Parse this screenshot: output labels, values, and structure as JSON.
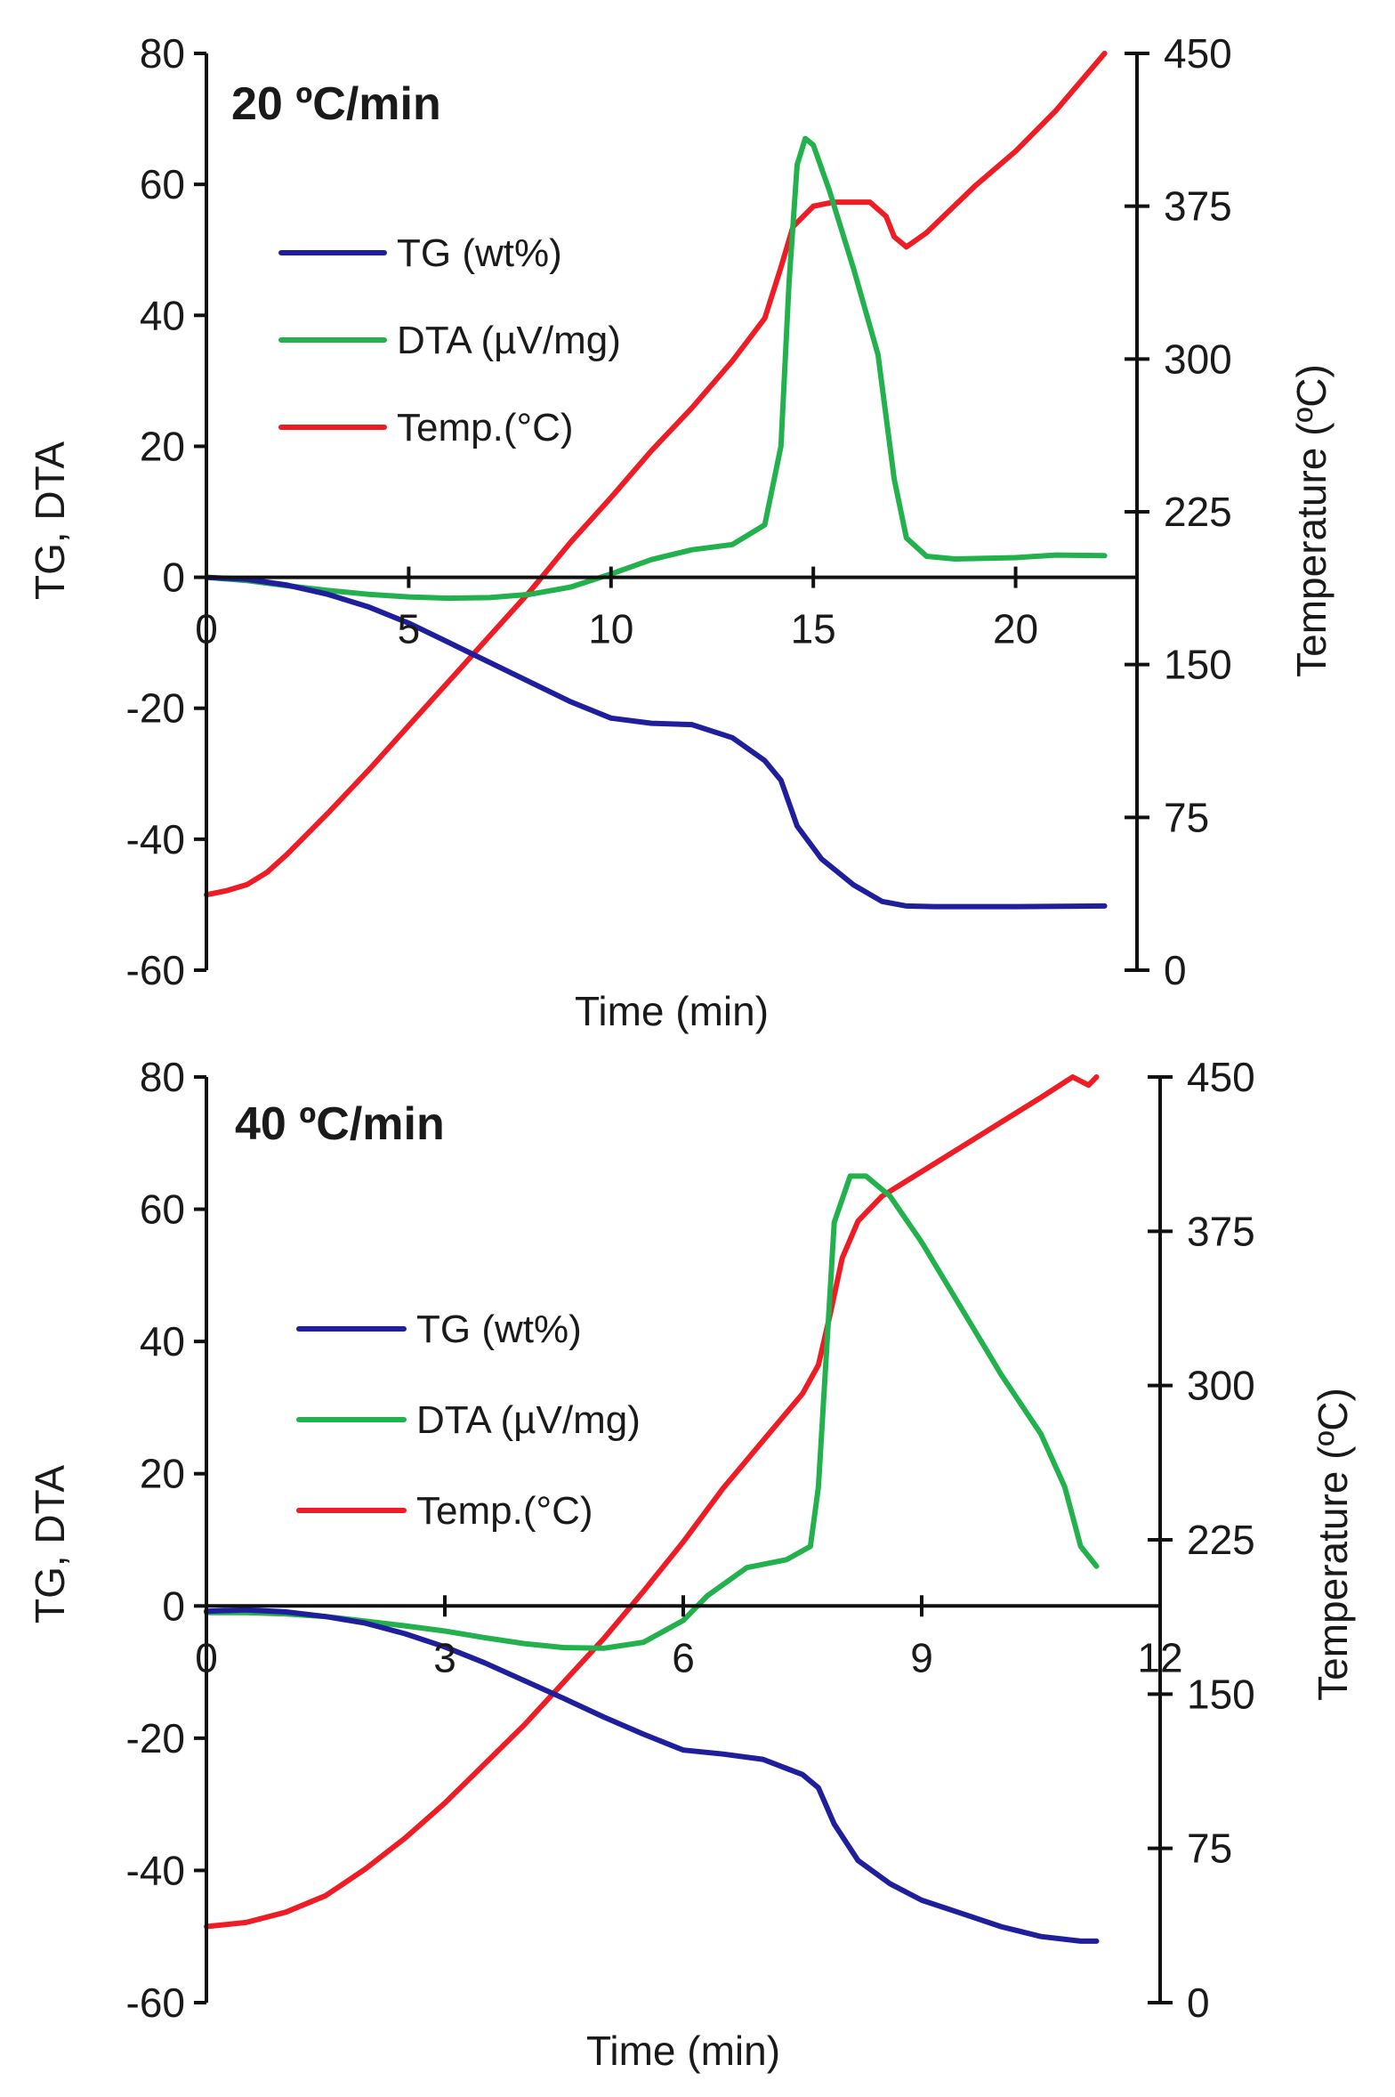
{
  "chart_data": [
    {
      "type": "line",
      "title": "20 ºC/min",
      "xlabel": "Time (min)",
      "ylabel": "TG, DTA",
      "y2label": "Temperature (ºC)",
      "xlim": [
        0,
        23
      ],
      "ylim": [
        -60,
        80
      ],
      "y2lim": [
        0,
        450
      ],
      "x_ticks": [
        0,
        5,
        10,
        15,
        20
      ],
      "x_tick_labels": [
        "0",
        "5",
        "10",
        "15",
        "20"
      ],
      "y_ticks": [
        80,
        60,
        40,
        20,
        0,
        -20,
        -40,
        -60
      ],
      "y_tick_labels": [
        "80",
        "60",
        "40",
        "20",
        "0",
        "-20",
        "-40",
        "-60"
      ],
      "y2_ticks": [
        450,
        375,
        300,
        225,
        150,
        75,
        0
      ],
      "y2_tick_labels": [
        "450",
        "375",
        "300",
        "225",
        "150",
        "75",
        "0"
      ],
      "legend_position": "upper-left",
      "series": [
        {
          "name": "TG (wt%)",
          "axis": "left",
          "color": "#1f1f9e",
          "x": [
            0,
            1,
            2,
            3,
            4,
            5,
            6,
            7,
            8,
            9,
            10,
            11,
            12,
            13,
            13.8,
            14.2,
            14.6,
            15.2,
            16,
            16.7,
            17.3,
            18,
            20,
            22.2
          ],
          "y": [
            0,
            -0.3,
            -1.2,
            -2.6,
            -4.5,
            -7,
            -10,
            -13,
            -16,
            -19,
            -21.5,
            -22.3,
            -22.5,
            -24.5,
            -28,
            -31,
            -38,
            -43,
            -47,
            -49.5,
            -50.2,
            -50.3,
            -50.3,
            -50.2
          ]
        },
        {
          "name": "DTA (µV/mg)",
          "axis": "left",
          "color": "#22b14c",
          "x": [
            0,
            1,
            2,
            3,
            4,
            5,
            6,
            7,
            8,
            9,
            10,
            11,
            12,
            13,
            13.8,
            14.2,
            14.4,
            14.6,
            14.8,
            15.0,
            15.4,
            16.0,
            16.6,
            17.0,
            17.3,
            17.8,
            18.5,
            20,
            21,
            22.2
          ],
          "y": [
            0,
            -0.5,
            -1.3,
            -2.0,
            -2.6,
            -3.0,
            -3.2,
            -3.1,
            -2.6,
            -1.5,
            0.5,
            2.7,
            4.2,
            5,
            8,
            20,
            45,
            63,
            67,
            66,
            59,
            47,
            34,
            15,
            6,
            3.2,
            2.8,
            3.0,
            3.4,
            3.3
          ]
        },
        {
          "name": "Temp.(°C)",
          "axis": "right",
          "color": "#ee1c24",
          "x": [
            0,
            0.5,
            1,
            1.5,
            2,
            3,
            4,
            5,
            6,
            7,
            8,
            9,
            10,
            11,
            12,
            13,
            13.8,
            14.2,
            14.5,
            15,
            15.5,
            16,
            16.4,
            16.8,
            17.0,
            17.3,
            17.8,
            19,
            20,
            21,
            22.2
          ],
          "y": [
            37,
            39,
            42,
            48,
            57,
            77,
            98,
            120,
            142,
            164,
            186,
            210,
            232,
            255,
            276,
            299,
            320,
            345,
            365,
            375,
            377,
            377,
            377,
            370,
            360,
            355,
            362,
            385,
            402,
            422,
            450
          ]
        }
      ]
    },
    {
      "type": "line",
      "title": "40 ºC/min",
      "xlabel": "Time (min)",
      "ylabel": "TG, DTA",
      "y2label": "Temperature (ºC)",
      "xlim": [
        0,
        12
      ],
      "ylim": [
        -60,
        80
      ],
      "y2lim": [
        0,
        450
      ],
      "x_ticks": [
        0,
        3,
        6,
        9,
        12
      ],
      "x_tick_labels": [
        "0",
        "3",
        "6",
        "9",
        "12"
      ],
      "y_ticks": [
        80,
        60,
        40,
        20,
        0,
        -20,
        -40,
        -60
      ],
      "y_tick_labels": [
        "80",
        "60",
        "40",
        "20",
        "0",
        "-20",
        "-40",
        "-60"
      ],
      "y2_ticks": [
        450,
        375,
        300,
        225,
        150,
        75,
        0
      ],
      "y2_tick_labels": [
        "450",
        "375",
        "300",
        "225",
        "150",
        "75",
        "0"
      ],
      "legend_position": "center-left",
      "series": [
        {
          "name": "TG (wt%)",
          "axis": "left",
          "color": "#1f1f9e",
          "x": [
            0,
            0.5,
            1,
            1.5,
            2,
            2.5,
            3,
            3.5,
            4,
            4.5,
            5,
            5.5,
            6,
            6.5,
            7,
            7.5,
            7.7,
            7.9,
            8.2,
            8.6,
            9,
            9.5,
            10,
            10.5,
            11,
            11.2
          ],
          "y": [
            -0.8,
            -0.6,
            -0.9,
            -1.6,
            -2.6,
            -4.2,
            -6.2,
            -8.6,
            -11.3,
            -14.0,
            -16.8,
            -19.4,
            -21.8,
            -22.4,
            -23.2,
            -25.5,
            -27.5,
            -33,
            -38.5,
            -42,
            -44.5,
            -46.5,
            -48.5,
            -50,
            -50.7,
            -50.7
          ]
        },
        {
          "name": "DTA (µV/mg)",
          "axis": "left",
          "color": "#22b14c",
          "x": [
            0,
            0.5,
            1,
            1.5,
            2,
            2.5,
            3,
            3.5,
            4,
            4.5,
            5,
            5.5,
            6,
            6.3,
            6.8,
            7.3,
            7.6,
            7.7,
            7.8,
            7.9,
            8.1,
            8.3,
            8.6,
            9,
            9.5,
            10,
            10.5,
            10.8,
            11.0,
            11.2
          ],
          "y": [
            -1,
            -1,
            -1.2,
            -1.6,
            -2.3,
            -3.0,
            -3.8,
            -4.8,
            -5.7,
            -6.3,
            -6.4,
            -5.5,
            -2.2,
            1.5,
            5.8,
            7,
            9,
            18,
            38,
            58,
            65,
            65,
            62,
            55,
            45,
            35,
            26,
            18,
            9,
            6
          ]
        },
        {
          "name": "Temp.(°C)",
          "axis": "right",
          "color": "#ee1c24",
          "x": [
            0,
            0.5,
            1,
            1.5,
            2,
            2.5,
            3,
            3.5,
            4,
            4.5,
            5,
            5.5,
            6,
            6.5,
            7,
            7.5,
            7.7,
            7.85,
            8.0,
            8.2,
            8.5,
            9,
            9.5,
            10,
            10.5,
            10.9,
            11.1,
            11.2
          ],
          "y": [
            37,
            39,
            44,
            52,
            65,
            80,
            97,
            116,
            135,
            156,
            177,
            200,
            224,
            250,
            273,
            296,
            310,
            335,
            362,
            380,
            392,
            404,
            416,
            428,
            440,
            450,
            446,
            450
          ]
        }
      ]
    }
  ]
}
